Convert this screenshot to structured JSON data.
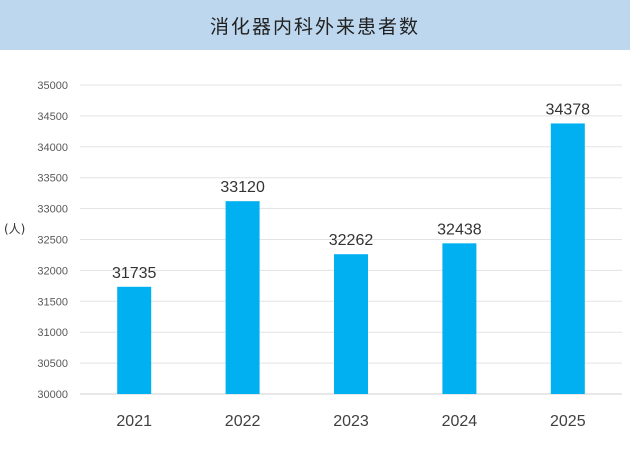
{
  "header": {
    "title": "消化器内科外来患者数"
  },
  "chart_data": {
    "type": "bar",
    "title": "消化器内科外来患者数",
    "ylabel": "(人)",
    "xlabel": "",
    "categories": [
      "2021",
      "2022",
      "2023",
      "2024",
      "2025"
    ],
    "values": [
      31735,
      33120,
      32262,
      32438,
      34378
    ],
    "ylim": [
      30000,
      35000
    ],
    "yticks": [
      30000,
      30500,
      31000,
      31500,
      32000,
      32500,
      33000,
      33500,
      34000,
      34500,
      35000
    ],
    "grid": true,
    "data_labels": true,
    "bar_color": "#00b0f0"
  }
}
